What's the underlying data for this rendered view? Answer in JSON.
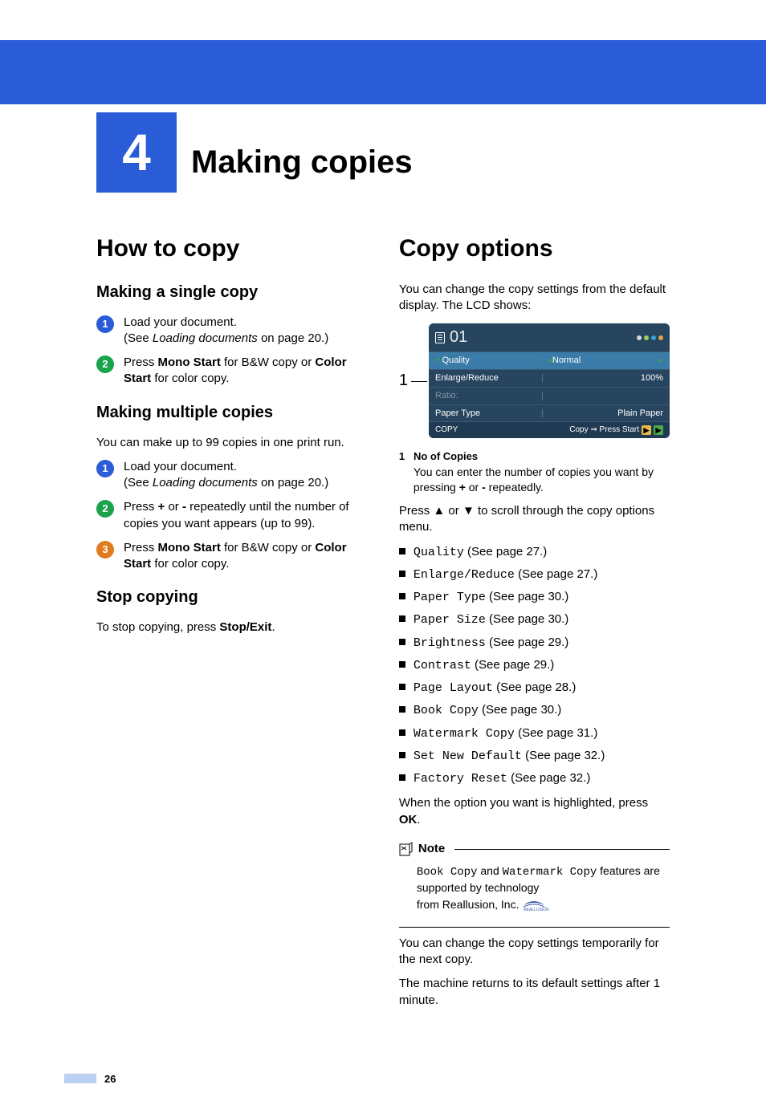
{
  "chapter": {
    "number": "4",
    "title": "Making copies"
  },
  "leftCol": {
    "h1": "How to copy",
    "single": {
      "heading": "Making a single copy",
      "steps": [
        {
          "num": "1",
          "color": "blue",
          "text": "Load your document.",
          "sub_pre": "(See ",
          "sub_italic": "Loading documents",
          "sub_post": " on page 20.)"
        },
        {
          "num": "2",
          "color": "green",
          "pre": "Press ",
          "bold1": "Mono Start",
          "mid": " for B&W copy or ",
          "bold2": "Color Start",
          "post": " for color copy."
        }
      ]
    },
    "multiple": {
      "heading": "Making multiple copies",
      "intro": "You can make up to 99 copies in one print run.",
      "steps": [
        {
          "num": "1",
          "color": "blue",
          "text": "Load your document.",
          "sub_pre": "(See ",
          "sub_italic": "Loading documents",
          "sub_post": " on page 20.)"
        },
        {
          "num": "2",
          "color": "green",
          "pre": "Press ",
          "bold1": "+",
          "mid1": " or ",
          "bold2": "-",
          "mid2": " repeatedly until the number of copies you want appears (up to 99)."
        },
        {
          "num": "3",
          "color": "orange",
          "pre": "Press ",
          "bold1": "Mono Start",
          "mid": " for B&W copy or ",
          "bold2": "Color Start",
          "post": " for color copy."
        }
      ]
    },
    "stop": {
      "heading": "Stop copying",
      "pre": "To stop copying, press ",
      "bold": "Stop/Exit",
      "post": "."
    }
  },
  "rightCol": {
    "h1": "Copy options",
    "intro": "You can change the copy settings from the default display. The LCD shows:",
    "lcd": {
      "callout_num": "1",
      "count": "01",
      "dots": [
        "#d8d8d8",
        "#9ad15f",
        "#3aa0e0",
        "#e8a24a"
      ],
      "rows": [
        {
          "label": "Quality",
          "value": "Normal",
          "selected": true,
          "arrows": true
        },
        {
          "label": "Enlarge/Reduce",
          "value": "100%",
          "selected": false,
          "arrows": false
        },
        {
          "label": "Ratio:",
          "value": "",
          "selected": false,
          "arrows": false,
          "dim": true
        },
        {
          "label": "Paper Type",
          "value": "Plain Paper",
          "selected": false,
          "arrows": false
        }
      ],
      "bottom": {
        "left": "COPY",
        "right_pre": "Copy ⇒ Press Start",
        "icons": [
          {
            "bg": "#e8b84a",
            "fg": "#000",
            "ch": "▶"
          },
          {
            "bg": "#4aa84a",
            "fg": "#000",
            "ch": "▶"
          }
        ]
      },
      "bg": "#27455f",
      "sel_bg": "#3b7ba8"
    },
    "legend": {
      "num": "1",
      "title": "No of Copies",
      "body_pre": "You can enter the number of copies you want by pressing ",
      "b1": "+",
      "mid": " or ",
      "b2": "-",
      "post": " repeatedly."
    },
    "scroll": {
      "pre": "Press ",
      "sym": "▲",
      "mid": " or ",
      "sym2": "▼",
      "post": " to scroll through the copy options menu."
    },
    "options": [
      {
        "name": "Quality",
        "page": "27"
      },
      {
        "name": "Enlarge/Reduce",
        "page": "27"
      },
      {
        "name": "Paper Type",
        "page": "30"
      },
      {
        "name": "Paper Size",
        "page": "30"
      },
      {
        "name": "Brightness",
        "page": "29"
      },
      {
        "name": "Contrast",
        "page": "29"
      },
      {
        "name": "Page Layout",
        "page": "28"
      },
      {
        "name": "Book Copy",
        "page": "30"
      },
      {
        "name": "Watermark Copy",
        "page": "31"
      },
      {
        "name": "Set New Default",
        "page": "32"
      },
      {
        "name": "Factory Reset",
        "page": "32"
      }
    ],
    "option_phrase_pre": " (See page ",
    "option_phrase_post": ".)",
    "when_pre": "When the option you want is highlighted, press ",
    "when_bold": "OK",
    "when_post": ".",
    "note": {
      "label": "Note",
      "line1_code1": "Book Copy",
      "line1_mid": " and ",
      "line1_code2": "Watermark Copy",
      "line2": "features are supported by technology",
      "line3": "from Reallusion, Inc.",
      "logo_text": "REALLUSION"
    },
    "tail1": "You can change the copy settings temporarily for the next copy.",
    "tail2": "The machine returns to its default settings after 1 minute."
  },
  "pageNumber": "26"
}
